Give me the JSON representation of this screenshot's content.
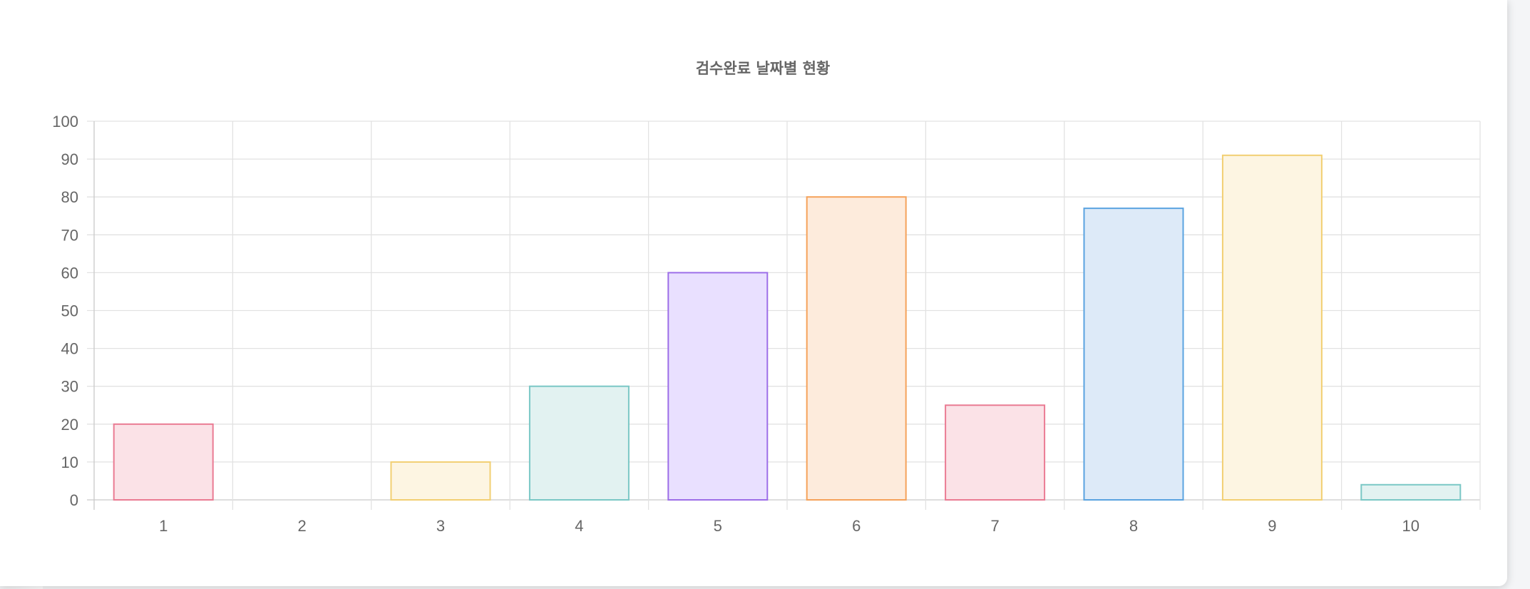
{
  "chart_data": {
    "type": "bar",
    "title": "검수완료 날짜별 현황",
    "xlabel": "",
    "ylabel": "",
    "categories": [
      "1",
      "2",
      "3",
      "4",
      "5",
      "6",
      "7",
      "8",
      "9",
      "10"
    ],
    "values": [
      20,
      0,
      10,
      30,
      60,
      80,
      25,
      77,
      91,
      4
    ],
    "ylim": [
      0,
      100
    ],
    "yticks": [
      0,
      10,
      20,
      30,
      40,
      50,
      60,
      70,
      80,
      90,
      100
    ],
    "grid": true,
    "legend": "none",
    "colors": [
      {
        "fill": "#fbe2e7",
        "stroke": "#ea7b93"
      },
      {
        "fill": "#e7eff8",
        "stroke": "#5aa3e0"
      },
      {
        "fill": "#fdf5e2",
        "stroke": "#f2cf72"
      },
      {
        "fill": "#e2f2f1",
        "stroke": "#7ac7c5"
      },
      {
        "fill": "#e9e0ff",
        "stroke": "#9d6ee8"
      },
      {
        "fill": "#fdebdc",
        "stroke": "#f5a25a"
      },
      {
        "fill": "#fbe2e7",
        "stroke": "#ea7b93"
      },
      {
        "fill": "#ddeaf8",
        "stroke": "#5aa3e0"
      },
      {
        "fill": "#fdf5e2",
        "stroke": "#f2cf72"
      },
      {
        "fill": "#e2f2f1",
        "stroke": "#7ac7c5"
      }
    ]
  }
}
